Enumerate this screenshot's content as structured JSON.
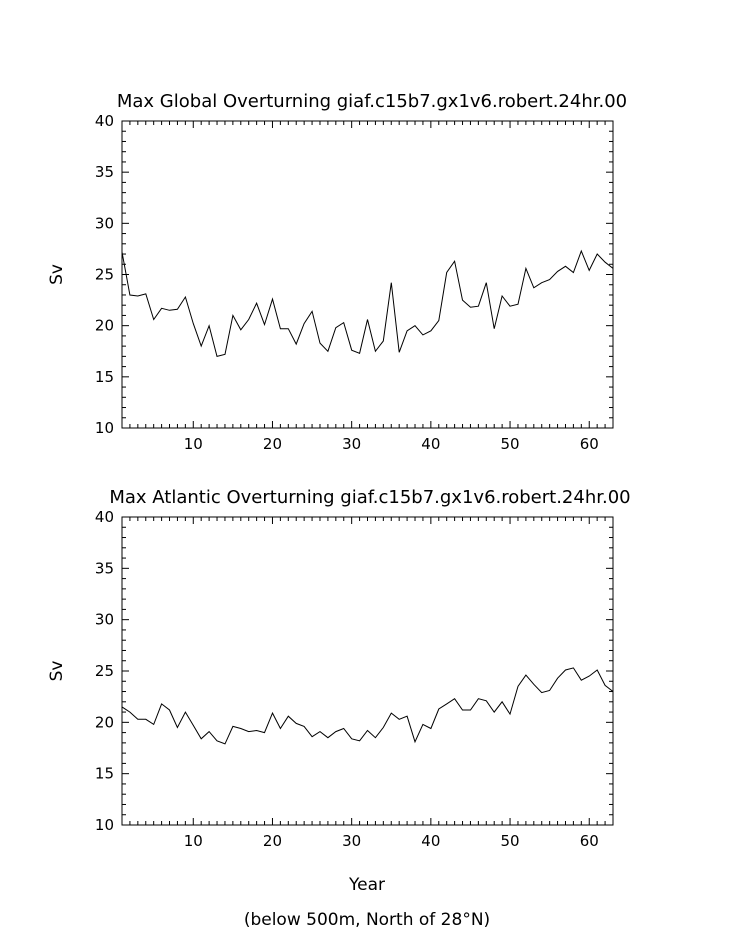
{
  "chart_data": [
    {
      "type": "line",
      "title": "Max Global Overturning giaf.c15b7.gx1v6.robert.24hr.00",
      "xlabel": "",
      "ylabel": "Sv",
      "xlim": [
        1,
        63
      ],
      "ylim": [
        10,
        40
      ],
      "x_ticks": [
        10,
        20,
        30,
        40,
        50,
        60
      ],
      "y_ticks": [
        10,
        15,
        20,
        25,
        30,
        35,
        40
      ],
      "x_start": 1,
      "x_step": 1,
      "series": [
        {
          "values": [
            27.2,
            23.0,
            22.9,
            23.1,
            20.6,
            21.7,
            21.5,
            21.6,
            22.8,
            20.2,
            18.0,
            20.0,
            17.0,
            17.2,
            21.0,
            19.6,
            20.6,
            22.2,
            20.1,
            22.6,
            19.7,
            19.7,
            18.2,
            20.2,
            21.4,
            18.3,
            17.5,
            19.8,
            20.3,
            17.6,
            17.3,
            20.6,
            17.5,
            18.5,
            24.2,
            17.4,
            19.5,
            20.0,
            19.1,
            19.5,
            20.5,
            25.2,
            26.3,
            22.5,
            21.8,
            21.9,
            24.2,
            19.7,
            22.9,
            21.9,
            22.1,
            25.6,
            23.7,
            24.2,
            24.5,
            25.3,
            25.8,
            25.2,
            27.3,
            25.4,
            27.0,
            26.2,
            25.6
          ]
        }
      ]
    },
    {
      "type": "line",
      "title": "Max Atlantic Overturning giaf.c15b7.gx1v6.robert.24hr.00",
      "xlabel": "Year",
      "ylabel": "Sv",
      "xlim": [
        1,
        63
      ],
      "ylim": [
        10,
        40
      ],
      "x_ticks": [
        10,
        20,
        30,
        40,
        50,
        60
      ],
      "y_ticks": [
        10,
        15,
        20,
        25,
        30,
        35,
        40
      ],
      "x_start": 1,
      "x_step": 1,
      "series": [
        {
          "values": [
            21.5,
            21.0,
            20.3,
            20.3,
            19.8,
            21.8,
            21.2,
            19.5,
            21.0,
            19.7,
            18.4,
            19.1,
            18.2,
            17.9,
            19.6,
            19.4,
            19.1,
            19.2,
            19.0,
            20.9,
            19.4,
            20.6,
            19.9,
            19.6,
            18.6,
            19.1,
            18.5,
            19.1,
            19.4,
            18.4,
            18.2,
            19.2,
            18.5,
            19.5,
            20.9,
            20.3,
            20.6,
            18.1,
            19.8,
            19.4,
            21.3,
            21.8,
            22.3,
            21.2,
            21.2,
            22.3,
            22.1,
            21.0,
            22.0,
            20.8,
            23.5,
            24.6,
            23.7,
            22.9,
            23.1,
            24.3,
            25.1,
            25.3,
            24.1,
            24.5,
            25.1,
            23.6,
            23.0
          ]
        }
      ],
      "footnote": "(below 500m, North of 28°N)"
    }
  ]
}
